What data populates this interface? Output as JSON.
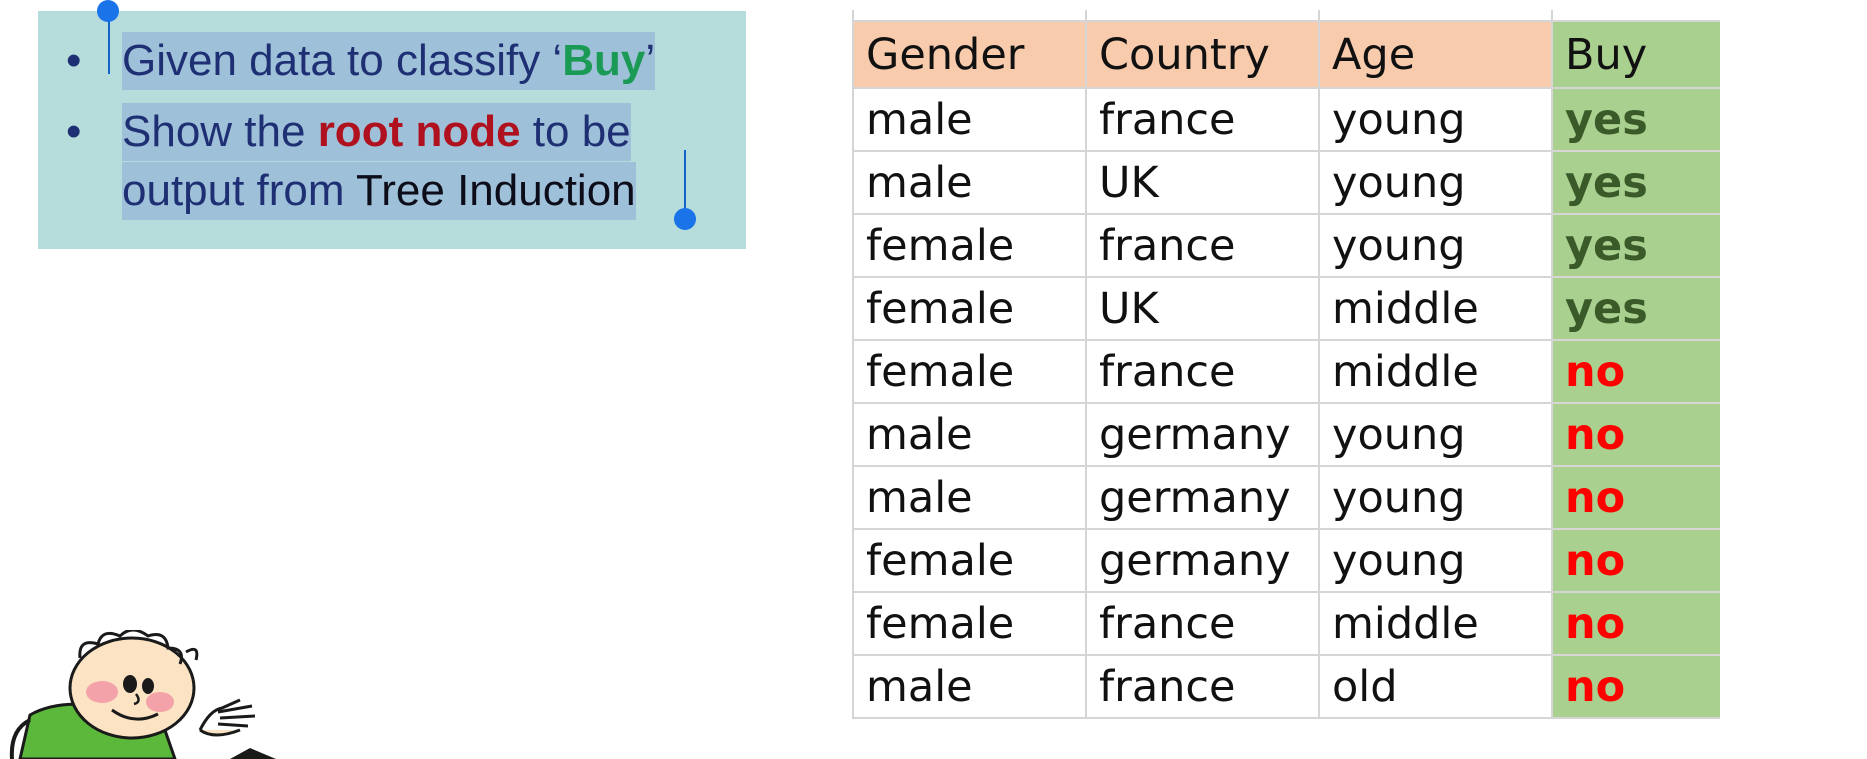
{
  "textbox": {
    "bullet_symbol": "•",
    "line1": {
      "prefix": "Given data to classify ‘",
      "highlight": "Buy",
      "suffix": "’"
    },
    "line2": {
      "prefix": "Show the ",
      "highlight": "root node",
      "suffix": " to be"
    },
    "line3": {
      "prefix": "output from ",
      "tail": "Tree Induction"
    }
  },
  "table": {
    "headers": [
      "Gender",
      "Country",
      "Age",
      "Buy"
    ],
    "rows": [
      [
        "male",
        "france",
        "young",
        "yes"
      ],
      [
        "male",
        "UK",
        "young",
        "yes"
      ],
      [
        "female",
        "france",
        "young",
        "yes"
      ],
      [
        "female",
        "UK",
        "middle",
        "yes"
      ],
      [
        "female",
        "france",
        "middle",
        "no"
      ],
      [
        "male",
        "germany",
        "young",
        "no"
      ],
      [
        "male",
        "germany",
        "young",
        "no"
      ],
      [
        "female",
        "germany",
        "young",
        "no"
      ],
      [
        "female",
        "france",
        "middle",
        "no"
      ],
      [
        "male",
        "france",
        "old",
        "no"
      ]
    ]
  },
  "colors": {
    "textbox_bg": "#b6dcdc",
    "selection": "#9ec0d8",
    "header_bg": "#f8cbad",
    "buy_col_bg": "#a9d08e",
    "yes_color": "#3a5a2a",
    "no_color": "#ff0000",
    "handle": "#1a73e8"
  }
}
